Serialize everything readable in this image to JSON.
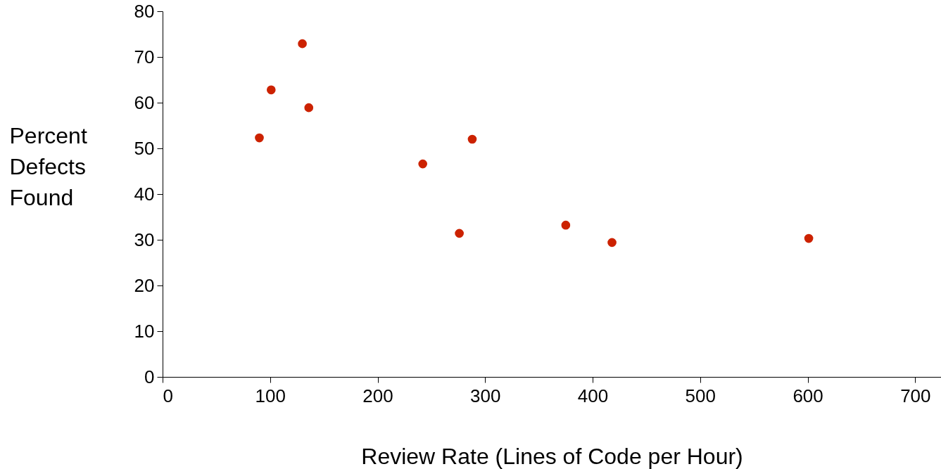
{
  "chart_data": {
    "type": "scatter",
    "xlabel": "Review Rate (Lines of Code per Hour)",
    "ylabel": "Percent Defects Found",
    "x": [
      90,
      101,
      130,
      136,
      242,
      288,
      276,
      375,
      418,
      601
    ],
    "series": [
      {
        "color": "#cc2200",
        "values": [
          52.3,
          62.8,
          72.9,
          58.9,
          46.6,
          52,
          31.4,
          33.2,
          29.4,
          30.3
        ]
      }
    ],
    "xlim": [
      0,
      724
    ],
    "xticks": [
      0,
      100,
      200,
      300,
      400,
      500,
      600,
      700
    ],
    "ylim": [
      0,
      80
    ],
    "yticks": [
      0,
      10,
      20,
      30,
      40,
      50,
      60,
      70,
      80
    ],
    "grid": false,
    "marker": "circle"
  }
}
